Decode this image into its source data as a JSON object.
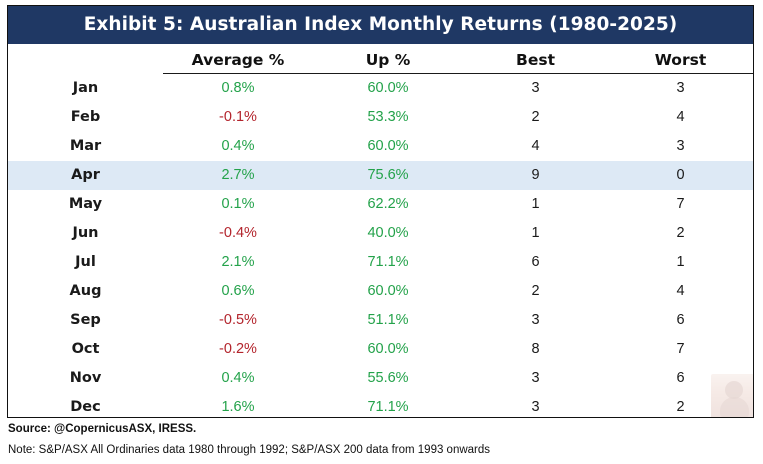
{
  "chart_data": {
    "type": "table",
    "title": "Exhibit 5: Australian Index Monthly Returns (1980-2025)",
    "columns": [
      "Average %",
      "Up %",
      "Best",
      "Worst"
    ],
    "rows": [
      {
        "month": "Jan",
        "average": "0.8%",
        "up": "60.0%",
        "best": "3",
        "worst": "3",
        "avg_sign": "positive"
      },
      {
        "month": "Feb",
        "average": "-0.1%",
        "up": "53.3%",
        "best": "2",
        "worst": "4",
        "avg_sign": "negative"
      },
      {
        "month": "Mar",
        "average": "0.4%",
        "up": "60.0%",
        "best": "4",
        "worst": "3",
        "avg_sign": "positive"
      },
      {
        "month": "Apr",
        "average": "2.7%",
        "up": "75.6%",
        "best": "9",
        "worst": "0",
        "avg_sign": "positive",
        "highlighted": true
      },
      {
        "month": "May",
        "average": "0.1%",
        "up": "62.2%",
        "best": "1",
        "worst": "7",
        "avg_sign": "positive"
      },
      {
        "month": "Jun",
        "average": "-0.4%",
        "up": "40.0%",
        "best": "1",
        "worst": "2",
        "avg_sign": "negative"
      },
      {
        "month": "Jul",
        "average": "2.1%",
        "up": "71.1%",
        "best": "6",
        "worst": "1",
        "avg_sign": "positive"
      },
      {
        "month": "Aug",
        "average": "0.6%",
        "up": "60.0%",
        "best": "2",
        "worst": "4",
        "avg_sign": "positive"
      },
      {
        "month": "Sep",
        "average": "-0.5%",
        "up": "51.1%",
        "best": "3",
        "worst": "6",
        "avg_sign": "negative"
      },
      {
        "month": "Oct",
        "average": "-0.2%",
        "up": "60.0%",
        "best": "8",
        "worst": "7",
        "avg_sign": "negative"
      },
      {
        "month": "Nov",
        "average": "0.4%",
        "up": "55.6%",
        "best": "3",
        "worst": "6",
        "avg_sign": "positive"
      },
      {
        "month": "Dec",
        "average": "1.6%",
        "up": "71.1%",
        "best": "3",
        "worst": "2",
        "avg_sign": "positive"
      }
    ],
    "source": "Source: @CopernicusASX, IRESS.",
    "note": "Note: S&P/ASX All Ordinaries data 1980 through 1992; S&P/ASX 200 data from 1993 onwards"
  },
  "colors": {
    "title_background": "#1f3864",
    "positive": "#23a24a",
    "negative": "#b3242c",
    "highlight_row": "#dde9f5"
  },
  "icons": {
    "watermark": "portrait-watermark-icon"
  }
}
